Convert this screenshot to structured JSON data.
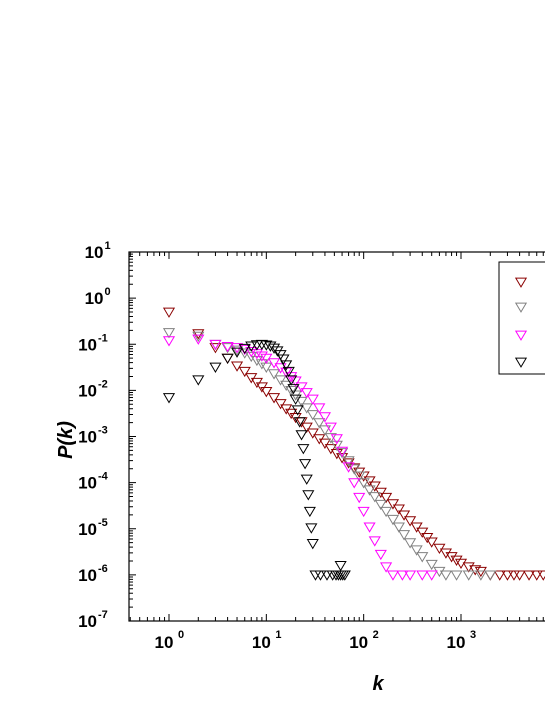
{
  "chart_data": {
    "type": "scatter",
    "xscale": "log",
    "yscale": "log",
    "xlim": [
      0.4,
      7000
    ],
    "ylim": [
      1e-07,
      10
    ],
    "xlabel": "k",
    "ylabel": "P(k)",
    "grid": false,
    "legend_position": "top-right",
    "marker": "down-triangle-open",
    "x_ticks": [
      {
        "value": 1,
        "base": "10",
        "exp": "0"
      },
      {
        "value": 10,
        "base": "10",
        "exp": "1"
      },
      {
        "value": 100,
        "base": "10",
        "exp": "2"
      },
      {
        "value": 1000,
        "base": "10",
        "exp": "3"
      }
    ],
    "y_ticks": [
      {
        "value": 1e-07,
        "base": "10",
        "exp": "-7"
      },
      {
        "value": 1e-06,
        "base": "10",
        "exp": "-6"
      },
      {
        "value": 1e-05,
        "base": "10",
        "exp": "-5"
      },
      {
        "value": 0.0001,
        "base": "10",
        "exp": "-4"
      },
      {
        "value": 0.001,
        "base": "10",
        "exp": "-3"
      },
      {
        "value": 0.01,
        "base": "10",
        "exp": "-2"
      },
      {
        "value": 0.1,
        "base": "10",
        "exp": "-1"
      },
      {
        "value": 1,
        "base": "10",
        "exp": "0"
      },
      {
        "value": 10,
        "base": "10",
        "exp": "1"
      }
    ],
    "series": [
      {
        "color": "#8B0000",
        "points": [
          [
            1,
            0.5
          ],
          [
            2,
            0.17
          ],
          [
            3,
            0.085
          ],
          [
            4,
            0.05
          ],
          [
            5,
            0.034
          ],
          [
            6,
            0.026
          ],
          [
            7,
            0.019
          ],
          [
            8,
            0.015
          ],
          [
            9,
            0.012
          ],
          [
            10,
            0.0095
          ],
          [
            12,
            0.007
          ],
          [
            14,
            0.0052
          ],
          [
            16,
            0.004
          ],
          [
            18,
            0.0032
          ],
          [
            20,
            0.0026
          ],
          [
            23,
            0.0021
          ],
          [
            26,
            0.0016
          ],
          [
            30,
            0.0012
          ],
          [
            35,
            0.0009
          ],
          [
            40,
            0.00072
          ],
          [
            46,
            0.00055
          ],
          [
            53,
            0.00043
          ],
          [
            60,
            0.00035
          ],
          [
            70,
            0.00027
          ],
          [
            80,
            0.00021
          ],
          [
            90,
            0.00017
          ],
          [
            100,
            0.00014
          ],
          [
            115,
            0.00011
          ],
          [
            130,
            8.5e-05
          ],
          [
            150,
            6.2e-05
          ],
          [
            170,
            4.8e-05
          ],
          [
            200,
            3.5e-05
          ],
          [
            230,
            2.7e-05
          ],
          [
            260,
            2e-05
          ],
          [
            300,
            1.5e-05
          ],
          [
            350,
            1.1e-05
          ],
          [
            400,
            8.5e-06
          ],
          [
            450,
            6.5e-06
          ],
          [
            500,
            5.2e-06
          ],
          [
            600,
            3.8e-06
          ],
          [
            700,
            3e-06
          ],
          [
            800,
            2.5e-06
          ],
          [
            900,
            2.1e-06
          ],
          [
            1000,
            1.8e-06
          ],
          [
            1200,
            1.5e-06
          ],
          [
            1400,
            1.3e-06
          ],
          [
            1600,
            1.2e-06
          ],
          [
            2000,
            1e-06
          ],
          [
            2500,
            1e-06
          ],
          [
            3000,
            1e-06
          ],
          [
            3500,
            1e-06
          ],
          [
            4000,
            1e-06
          ],
          [
            5000,
            1e-06
          ],
          [
            6000,
            1e-06
          ],
          [
            7000,
            1e-06
          ]
        ]
      },
      {
        "color": "#808080",
        "points": [
          [
            1,
            0.18
          ],
          [
            2,
            0.15
          ],
          [
            3,
            0.1
          ],
          [
            4,
            0.085
          ],
          [
            5,
            0.075
          ],
          [
            6,
            0.065
          ],
          [
            7,
            0.055
          ],
          [
            8,
            0.045
          ],
          [
            9,
            0.038
          ],
          [
            10,
            0.032
          ],
          [
            12,
            0.023
          ],
          [
            14,
            0.017
          ],
          [
            16,
            0.013
          ],
          [
            18,
            0.01
          ],
          [
            20,
            0.008
          ],
          [
            23,
            0.0058
          ],
          [
            26,
            0.0042
          ],
          [
            30,
            0.003
          ],
          [
            35,
            0.002
          ],
          [
            40,
            0.0014
          ],
          [
            46,
            0.00095
          ],
          [
            53,
            0.00065
          ],
          [
            60,
            0.00045
          ],
          [
            70,
            0.0003
          ],
          [
            80,
            0.0002
          ],
          [
            90,
            0.00014
          ],
          [
            100,
            0.0001
          ],
          [
            115,
            7e-05
          ],
          [
            130,
            5e-05
          ],
          [
            150,
            3.4e-05
          ],
          [
            170,
            2.4e-05
          ],
          [
            200,
            1.6e-05
          ],
          [
            230,
            1.1e-05
          ],
          [
            260,
            7.5e-06
          ],
          [
            300,
            5e-06
          ],
          [
            350,
            3.5e-06
          ],
          [
            400,
            2.5e-06
          ],
          [
            500,
            1.7e-06
          ],
          [
            600,
            1.2e-06
          ],
          [
            700,
            1e-06
          ],
          [
            900,
            1e-06
          ],
          [
            1200,
            1e-06
          ],
          [
            1600,
            1e-06
          ],
          [
            2000,
            1e-06
          ]
        ]
      },
      {
        "color": "#FF00FF",
        "points": [
          [
            1,
            0.12
          ],
          [
            2,
            0.13
          ],
          [
            3,
            0.1
          ],
          [
            4,
            0.09
          ],
          [
            5,
            0.085
          ],
          [
            6,
            0.078
          ],
          [
            7,
            0.07
          ],
          [
            8,
            0.063
          ],
          [
            9,
            0.056
          ],
          [
            10,
            0.05
          ],
          [
            12,
            0.04
          ],
          [
            14,
            0.031
          ],
          [
            16,
            0.025
          ],
          [
            18,
            0.02
          ],
          [
            20,
            0.016
          ],
          [
            23,
            0.012
          ],
          [
            26,
            0.009
          ],
          [
            30,
            0.0065
          ],
          [
            35,
            0.0042
          ],
          [
            40,
            0.0027
          ],
          [
            46,
            0.0016
          ],
          [
            53,
            0.0009
          ],
          [
            60,
            0.00048
          ],
          [
            70,
            0.00022
          ],
          [
            80,
            0.0001
          ],
          [
            90,
            4.8e-05
          ],
          [
            100,
            2.4e-05
          ],
          [
            115,
            1.1e-05
          ],
          [
            130,
            5.5e-06
          ],
          [
            150,
            2.8e-06
          ],
          [
            170,
            1.5e-06
          ],
          [
            200,
            1e-06
          ],
          [
            250,
            1e-06
          ],
          [
            300,
            1e-06
          ],
          [
            400,
            1e-06
          ],
          [
            500,
            1e-06
          ]
        ]
      },
      {
        "color": "#000000",
        "points": [
          [
            1,
            0.007
          ],
          [
            2,
            0.017
          ],
          [
            3,
            0.032
          ],
          [
            4,
            0.05
          ],
          [
            5,
            0.068
          ],
          [
            6,
            0.082
          ],
          [
            7,
            0.092
          ],
          [
            8,
            0.098
          ],
          [
            9,
            0.1
          ],
          [
            10,
            0.097
          ],
          [
            11,
            0.092
          ],
          [
            12,
            0.083
          ],
          [
            13,
            0.072
          ],
          [
            14,
            0.06
          ],
          [
            15,
            0.048
          ],
          [
            16,
            0.036
          ],
          [
            17,
            0.026
          ],
          [
            18,
            0.017
          ],
          [
            19,
            0.011
          ],
          [
            20,
            0.0065
          ],
          [
            21,
            0.0038
          ],
          [
            22,
            0.0021
          ],
          [
            23,
            0.0011
          ],
          [
            24,
            0.00055
          ],
          [
            25,
            0.00026
          ],
          [
            26,
            0.00012
          ],
          [
            27,
            5.5e-05
          ],
          [
            28,
            2.4e-05
          ],
          [
            29,
            1.05e-05
          ],
          [
            30,
            4.8e-06
          ],
          [
            32,
            1e-06
          ],
          [
            36,
            1e-06
          ],
          [
            42,
            1e-06
          ],
          [
            48,
            1e-06
          ],
          [
            52,
            1e-06
          ],
          [
            55,
            1e-06
          ],
          [
            58,
            1e-06
          ],
          [
            61,
            1e-06
          ],
          [
            64,
            1e-06
          ],
          [
            58,
            1.6e-06
          ]
        ]
      }
    ]
  }
}
